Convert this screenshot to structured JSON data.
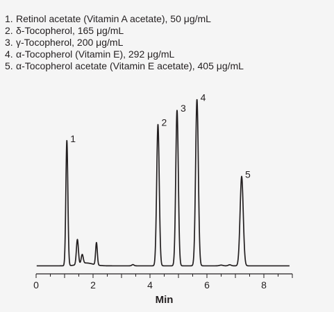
{
  "legend": [
    {
      "num": "1.",
      "text": "Retinol acetate (Vitamin A acetate), 50 μg/mL"
    },
    {
      "num": "2.",
      "text": "δ-Tocopherol, 165 μg/mL"
    },
    {
      "num": "3.",
      "text": "γ-Tocopherol, 200 μg/mL"
    },
    {
      "num": "4.",
      "text": "α-Tocopherol (Vitamin E), 292 μg/mL"
    },
    {
      "num": "5.",
      "text": "α-Tocopherol acetate (Vitamin E acetate), 405 μg/mL"
    }
  ],
  "chart_data": {
    "type": "line",
    "title": "",
    "xlabel": "Min",
    "ylabel": "",
    "xlim": [
      0,
      9
    ],
    "ylim": [
      0,
      100
    ],
    "x_ticks": [
      0,
      2,
      4,
      6,
      8
    ],
    "grid": false,
    "baseline": 1.0,
    "peaks": [
      {
        "label": "1",
        "x": 1.08,
        "height": 70.0,
        "width": 0.035
      },
      {
        "label": "",
        "x": 1.45,
        "height": 14.0,
        "width": 0.035
      },
      {
        "label": "",
        "x": 1.62,
        "height": 5.0,
        "width": 0.035
      },
      {
        "label": "",
        "x": 2.12,
        "height": 12.5,
        "width": 0.03
      },
      {
        "label": "2",
        "x": 4.28,
        "height": 79.0,
        "width": 0.045
      },
      {
        "label": "3",
        "x": 4.95,
        "height": 87.0,
        "width": 0.045
      },
      {
        "label": "4",
        "x": 5.65,
        "height": 93.0,
        "width": 0.048
      },
      {
        "label": "5",
        "x": 7.22,
        "height": 50.0,
        "width": 0.055
      }
    ],
    "minor_features": [
      {
        "x": 3.4,
        "height": 0.7,
        "width": 0.04
      },
      {
        "x": 6.5,
        "height": 0.4,
        "width": 0.06
      },
      {
        "x": 6.8,
        "height": 0.6,
        "width": 0.05
      }
    ]
  }
}
